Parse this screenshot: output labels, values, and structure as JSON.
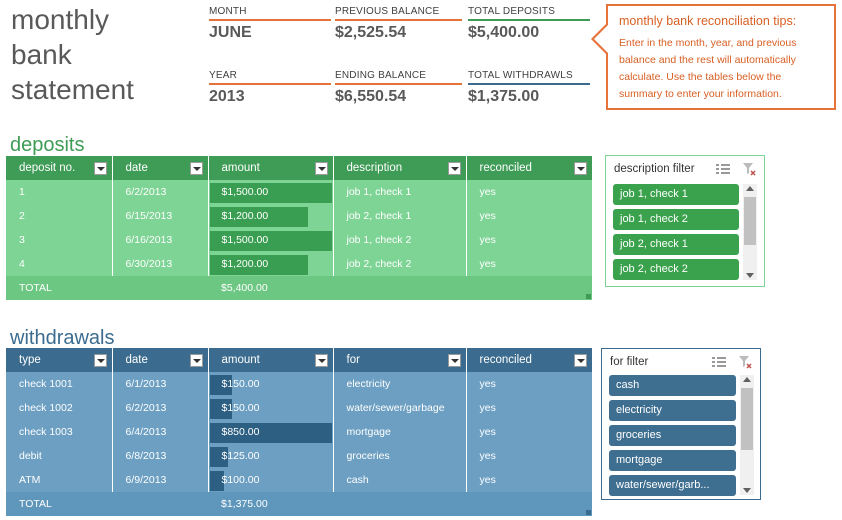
{
  "page_title": "monthly\nbank\nstatement",
  "summary": {
    "month": {
      "label": "MONTH",
      "value": "JUNE"
    },
    "year": {
      "label": "YEAR",
      "value": "2013"
    },
    "previous_balance": {
      "label": "PREVIOUS BALANCE",
      "value": "$2,525.54"
    },
    "ending_balance": {
      "label": "ENDING BALANCE",
      "value": "$6,550.54"
    },
    "total_deposits": {
      "label": "TOTAL DEPOSITS",
      "value": "$5,400.00"
    },
    "total_withdrawals": {
      "label": "TOTAL WITHDRAWLS",
      "value": "$1,375.00"
    }
  },
  "tips": {
    "title": "monthly bank reconciliation tips:",
    "body": "Enter in the month, year, and previous balance and the rest will automatically calculate. Use the tables below the summary to enter your information."
  },
  "deposits": {
    "heading": "deposits",
    "columns": [
      "deposit no.",
      "date",
      "amount",
      "description",
      "reconciled"
    ],
    "rows": [
      {
        "no": "1",
        "date": "6/2/2013",
        "amount": "$1,500.00",
        "amount_value": 1500,
        "description": "job 1, check 1",
        "reconciled": "yes"
      },
      {
        "no": "2",
        "date": "6/15/2013",
        "amount": "$1,200.00",
        "amount_value": 1200,
        "description": "job 2, check 1",
        "reconciled": "yes"
      },
      {
        "no": "3",
        "date": "6/16/2013",
        "amount": "$1,500.00",
        "amount_value": 1500,
        "description": "job 1, check 2",
        "reconciled": "yes"
      },
      {
        "no": "4",
        "date": "6/30/2013",
        "amount": "$1,200.00",
        "amount_value": 1200,
        "description": "job 2, check 2",
        "reconciled": "yes"
      }
    ],
    "total_label": "TOTAL",
    "total_value": "$5,400.00"
  },
  "withdrawals": {
    "heading": "withdrawals",
    "columns": [
      "type",
      "date",
      "amount",
      "for",
      "reconciled"
    ],
    "rows": [
      {
        "type": "check 1001",
        "date": "6/1/2013",
        "amount": "$150.00",
        "amount_value": 150,
        "for": "electricity",
        "reconciled": "yes"
      },
      {
        "type": "check 1002",
        "date": "6/2/2013",
        "amount": "$150.00",
        "amount_value": 150,
        "for": "water/sewer/garbage",
        "reconciled": "yes"
      },
      {
        "type": "check 1003",
        "date": "6/4/2013",
        "amount": "$850.00",
        "amount_value": 850,
        "for": "mortgage",
        "reconciled": "yes"
      },
      {
        "type": "debit",
        "date": "6/8/2013",
        "amount": "$125.00",
        "amount_value": 125,
        "for": "groceries",
        "reconciled": "yes"
      },
      {
        "type": "ATM",
        "date": "6/9/2013",
        "amount": "$100.00",
        "amount_value": 100,
        "for": "cash",
        "reconciled": "yes"
      }
    ],
    "total_label": "TOTAL",
    "total_value": "$1,375.00"
  },
  "deposit_slicer": {
    "title": "description filter",
    "items": [
      "job 1, check 1",
      "job 1, check 2",
      "job 2, check 1",
      "job 2, check 2"
    ]
  },
  "withdrawal_slicer": {
    "title": "for filter",
    "items": [
      "cash",
      "electricity",
      "groceries",
      "mortgage",
      "water/sewer/garb..."
    ]
  },
  "colors": {
    "dep_header": "#3e9c56",
    "dep_body": "#7ed495",
    "dep_total": "#6cc783",
    "dep_bar": "#3a9e52",
    "dep_heading": "#3e9c56",
    "dep_slicer_item": "#3aa24c",
    "dep_slicer_border": "#7ed495",
    "wd_header": "#3b6c8f",
    "wd_body": "#6c9fc2",
    "wd_total": "#5f96bb",
    "wd_bar": "#2d5f82",
    "wd_heading": "#3b6c8f",
    "wd_slicer_item": "#3f6f90",
    "wd_slicer_border": "#3b6c8f",
    "rule_orange": "#e6733a",
    "rule_green": "#3e9c56",
    "rule_blue": "#3b6c8f"
  },
  "icons": {
    "filter_dropdown": "filter-dropdown-icon",
    "multi_select": "multi-select-icon",
    "clear_filter": "clear-filter-icon",
    "scroll_up": "scroll-up-icon",
    "scroll_down": "scroll-down-icon"
  }
}
